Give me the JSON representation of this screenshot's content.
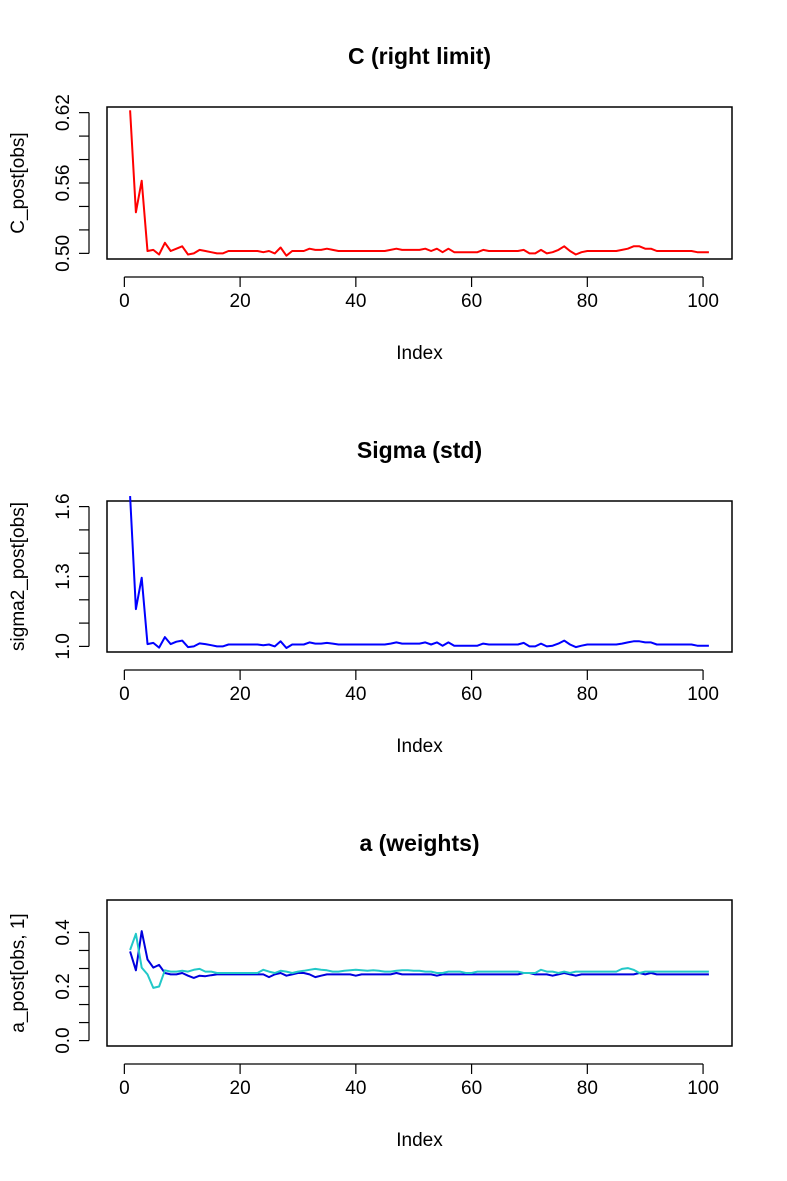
{
  "chart_data": [
    {
      "type": "line",
      "title": "C (right limit)",
      "xlabel": "Index",
      "ylabel": "C_post[obs]",
      "xlim": [
        1,
        101
      ],
      "ylim": [
        0.5,
        0.62
      ],
      "xticks": [
        0,
        20,
        40,
        60,
        80,
        100
      ],
      "yticks": [
        "0.50",
        "0.56",
        "0.62"
      ],
      "yticks_values": [
        0.5,
        0.56,
        0.62
      ],
      "grid": false,
      "series": [
        {
          "color": "#ff0000",
          "x": [
            1,
            2,
            3,
            4,
            5,
            6,
            7,
            8,
            9,
            10,
            11,
            12,
            13,
            14,
            15,
            16,
            17,
            18,
            19,
            20,
            21,
            22,
            23,
            24,
            25,
            26,
            27,
            28,
            29,
            30,
            31,
            32,
            33,
            34,
            35,
            36,
            37,
            38,
            39,
            40,
            41,
            42,
            43,
            44,
            45,
            46,
            47,
            48,
            49,
            50,
            51,
            52,
            53,
            54,
            55,
            56,
            57,
            58,
            59,
            60,
            61,
            62,
            63,
            64,
            65,
            66,
            67,
            68,
            69,
            70,
            71,
            72,
            73,
            74,
            75,
            76,
            77,
            78,
            79,
            80,
            81,
            82,
            83,
            84,
            85,
            86,
            87,
            88,
            89,
            90,
            91,
            92,
            93,
            94,
            95,
            96,
            97,
            98,
            99,
            100,
            101
          ],
          "y": [
            0.622,
            0.535,
            0.562,
            0.502,
            0.503,
            0.499,
            0.509,
            0.502,
            0.504,
            0.506,
            0.499,
            0.5,
            0.503,
            0.502,
            0.501,
            0.5,
            0.5,
            0.502,
            0.502,
            0.502,
            0.502,
            0.502,
            0.502,
            0.501,
            0.502,
            0.5,
            0.505,
            0.498,
            0.502,
            0.502,
            0.502,
            0.504,
            0.503,
            0.503,
            0.504,
            0.503,
            0.502,
            0.502,
            0.502,
            0.502,
            0.502,
            0.502,
            0.502,
            0.502,
            0.502,
            0.503,
            0.504,
            0.503,
            0.503,
            0.503,
            0.503,
            0.504,
            0.502,
            0.504,
            0.501,
            0.504,
            0.501,
            0.501,
            0.501,
            0.501,
            0.501,
            0.503,
            0.502,
            0.502,
            0.502,
            0.502,
            0.502,
            0.502,
            0.503,
            0.5,
            0.5,
            0.503,
            0.5,
            0.501,
            0.503,
            0.506,
            0.502,
            0.499,
            0.501,
            0.502,
            0.502,
            0.502,
            0.502,
            0.502,
            0.502,
            0.503,
            0.504,
            0.506,
            0.506,
            0.504,
            0.504,
            0.502,
            0.502,
            0.502,
            0.502,
            0.502,
            0.502,
            0.502,
            0.501,
            0.501,
            0.501
          ]
        }
      ]
    },
    {
      "type": "line",
      "title": "Sigma (std)",
      "xlabel": "Index",
      "ylabel": "sigma2_post[obs]",
      "xlim": [
        1,
        101
      ],
      "ylim": [
        1.0,
        1.6
      ],
      "xticks": [
        0,
        20,
        40,
        60,
        80,
        100
      ],
      "yticks": [
        "1.0",
        "1.3",
        "1.6"
      ],
      "yticks_values": [
        1.0,
        1.3,
        1.6
      ],
      "grid": false,
      "series": [
        {
          "color": "#0000ff",
          "x": [
            1,
            2,
            3,
            4,
            5,
            6,
            7,
            8,
            9,
            10,
            11,
            12,
            13,
            14,
            15,
            16,
            17,
            18,
            19,
            20,
            21,
            22,
            23,
            24,
            25,
            26,
            27,
            28,
            29,
            30,
            31,
            32,
            33,
            34,
            35,
            36,
            37,
            38,
            39,
            40,
            41,
            42,
            43,
            44,
            45,
            46,
            47,
            48,
            49,
            50,
            51,
            52,
            53,
            54,
            55,
            56,
            57,
            58,
            59,
            60,
            61,
            62,
            63,
            64,
            65,
            66,
            67,
            68,
            69,
            70,
            71,
            72,
            73,
            74,
            75,
            76,
            77,
            78,
            79,
            80,
            81,
            82,
            83,
            84,
            85,
            86,
            87,
            88,
            89,
            90,
            91,
            92,
            93,
            94,
            95,
            96,
            97,
            98,
            99,
            100,
            101
          ],
          "y": [
            1.645,
            1.16,
            1.295,
            1.01,
            1.015,
            0.995,
            1.04,
            1.01,
            1.02,
            1.025,
            0.997,
            1.0,
            1.013,
            1.01,
            1.005,
            1.0,
            1.0,
            1.008,
            1.008,
            1.008,
            1.008,
            1.008,
            1.008,
            1.005,
            1.008,
            1.0,
            1.022,
            0.993,
            1.008,
            1.008,
            1.008,
            1.017,
            1.012,
            1.012,
            1.015,
            1.012,
            1.008,
            1.008,
            1.008,
            1.008,
            1.008,
            1.008,
            1.008,
            1.008,
            1.008,
            1.012,
            1.017,
            1.012,
            1.012,
            1.012,
            1.012,
            1.017,
            1.008,
            1.017,
            1.003,
            1.017,
            1.003,
            1.003,
            1.003,
            1.003,
            1.003,
            1.012,
            1.008,
            1.008,
            1.008,
            1.008,
            1.008,
            1.008,
            1.015,
            1.0,
            1.0,
            1.012,
            1.0,
            1.003,
            1.012,
            1.025,
            1.008,
            0.997,
            1.003,
            1.008,
            1.008,
            1.008,
            1.008,
            1.008,
            1.008,
            1.012,
            1.017,
            1.022,
            1.022,
            1.017,
            1.017,
            1.008,
            1.008,
            1.008,
            1.008,
            1.008,
            1.008,
            1.008,
            1.003,
            1.003,
            1.003
          ]
        }
      ]
    },
    {
      "type": "line",
      "title": "a (weights)",
      "xlabel": "Index",
      "ylabel": "a_post[obs, 1]",
      "xlim": [
        1,
        101
      ],
      "ylim": [
        0.0,
        0.5
      ],
      "xticks": [
        0,
        20,
        40,
        60,
        80,
        100
      ],
      "yticks": [
        "0.0",
        "0.2",
        "0.4"
      ],
      "yticks_values": [
        0.0,
        0.2,
        0.4
      ],
      "grid": false,
      "series": [
        {
          "color": "#0000dd",
          "x": [
            1,
            2,
            3,
            4,
            5,
            6,
            7,
            8,
            9,
            10,
            11,
            12,
            13,
            14,
            15,
            16,
            17,
            18,
            19,
            20,
            21,
            22,
            23,
            24,
            25,
            26,
            27,
            28,
            29,
            30,
            31,
            32,
            33,
            34,
            35,
            36,
            37,
            38,
            39,
            40,
            41,
            42,
            43,
            44,
            45,
            46,
            47,
            48,
            49,
            50,
            51,
            52,
            53,
            54,
            55,
            56,
            57,
            58,
            59,
            60,
            61,
            62,
            63,
            64,
            65,
            66,
            67,
            68,
            69,
            70,
            71,
            72,
            73,
            74,
            75,
            76,
            77,
            78,
            79,
            80,
            81,
            82,
            83,
            84,
            85,
            86,
            87,
            88,
            89,
            90,
            91,
            92,
            93,
            94,
            95,
            96,
            97,
            98,
            99,
            100,
            101
          ],
          "y": [
            0.33,
            0.26,
            0.405,
            0.3,
            0.27,
            0.28,
            0.25,
            0.245,
            0.245,
            0.25,
            0.24,
            0.232,
            0.24,
            0.238,
            0.242,
            0.245,
            0.245,
            0.245,
            0.245,
            0.245,
            0.245,
            0.245,
            0.245,
            0.245,
            0.235,
            0.245,
            0.25,
            0.24,
            0.245,
            0.25,
            0.25,
            0.245,
            0.235,
            0.24,
            0.245,
            0.245,
            0.245,
            0.245,
            0.245,
            0.24,
            0.245,
            0.245,
            0.245,
            0.245,
            0.245,
            0.245,
            0.25,
            0.245,
            0.245,
            0.245,
            0.245,
            0.245,
            0.245,
            0.24,
            0.245,
            0.245,
            0.245,
            0.245,
            0.245,
            0.245,
            0.245,
            0.245,
            0.245,
            0.245,
            0.245,
            0.245,
            0.245,
            0.245,
            0.25,
            0.25,
            0.245,
            0.245,
            0.245,
            0.24,
            0.245,
            0.25,
            0.245,
            0.24,
            0.245,
            0.245,
            0.245,
            0.245,
            0.245,
            0.245,
            0.245,
            0.245,
            0.245,
            0.245,
            0.25,
            0.245,
            0.25,
            0.245,
            0.245,
            0.245,
            0.245,
            0.245,
            0.245,
            0.245,
            0.245,
            0.245,
            0.245
          ]
        },
        {
          "color": "#22c8c8",
          "x": [
            1,
            2,
            3,
            4,
            5,
            6,
            7,
            8,
            9,
            10,
            11,
            12,
            13,
            14,
            15,
            16,
            17,
            18,
            19,
            20,
            21,
            22,
            23,
            24,
            25,
            26,
            27,
            28,
            29,
            30,
            31,
            32,
            33,
            34,
            35,
            36,
            37,
            38,
            39,
            40,
            41,
            42,
            43,
            44,
            45,
            46,
            47,
            48,
            49,
            50,
            51,
            52,
            53,
            54,
            55,
            56,
            57,
            58,
            59,
            60,
            61,
            62,
            63,
            64,
            65,
            66,
            67,
            68,
            69,
            70,
            71,
            72,
            73,
            74,
            75,
            76,
            77,
            78,
            79,
            80,
            81,
            82,
            83,
            84,
            85,
            86,
            87,
            88,
            89,
            90,
            91,
            92,
            93,
            94,
            95,
            96,
            97,
            98,
            99,
            100,
            101
          ],
          "y": [
            0.335,
            0.395,
            0.27,
            0.245,
            0.195,
            0.2,
            0.26,
            0.255,
            0.255,
            0.258,
            0.255,
            0.262,
            0.265,
            0.255,
            0.255,
            0.25,
            0.25,
            0.25,
            0.25,
            0.25,
            0.25,
            0.25,
            0.25,
            0.262,
            0.255,
            0.25,
            0.258,
            0.255,
            0.25,
            0.255,
            0.258,
            0.262,
            0.265,
            0.262,
            0.26,
            0.255,
            0.255,
            0.258,
            0.26,
            0.262,
            0.26,
            0.258,
            0.26,
            0.258,
            0.255,
            0.255,
            0.258,
            0.26,
            0.26,
            0.258,
            0.258,
            0.255,
            0.255,
            0.25,
            0.25,
            0.255,
            0.255,
            0.255,
            0.25,
            0.25,
            0.255,
            0.255,
            0.255,
            0.255,
            0.255,
            0.255,
            0.255,
            0.255,
            0.25,
            0.25,
            0.25,
            0.262,
            0.255,
            0.255,
            0.25,
            0.255,
            0.25,
            0.255,
            0.255,
            0.255,
            0.255,
            0.255,
            0.255,
            0.255,
            0.255,
            0.265,
            0.268,
            0.262,
            0.25,
            0.255,
            0.255,
            0.255,
            0.255,
            0.255,
            0.255,
            0.255,
            0.255,
            0.255,
            0.255,
            0.255,
            0.255
          ]
        }
      ]
    }
  ]
}
